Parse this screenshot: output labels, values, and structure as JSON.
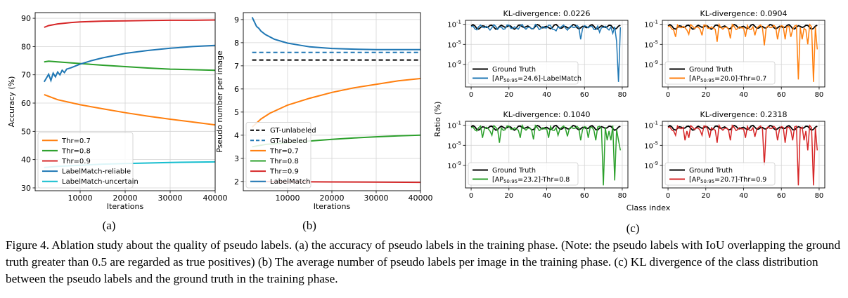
{
  "colors": {
    "orange": "#ff7f0e",
    "green": "#2ca02c",
    "red": "#d62728",
    "blue": "#1f77b4",
    "cyan": "#17becf",
    "black": "#000000"
  },
  "caption": "Figure 4. Ablation study about the quality of pseudo labels. (a) the accuracy of pseudo labels in the training phase. (Note: the pseudo labels with IoU overlapping the ground truth greater than 0.5 are regarded as true positives) (b) The average number of pseudo labels per image in the training phase. (c) KL divergence of the class distribution between the pseudo labels and the ground truth in the training phase.",
  "chart_data": [
    {
      "id": "a",
      "type": "line",
      "sublabel": "(a)",
      "xlabel": "Iterations",
      "ylabel": "Accuracy (%)",
      "xlim": [
        0,
        40000
      ],
      "ylim": [
        29,
        92
      ],
      "xticks": [
        10000,
        20000,
        30000,
        40000
      ],
      "yticks": [
        30,
        40,
        50,
        60,
        70,
        80,
        90
      ],
      "grid": true,
      "legend": "bottom-left",
      "series": [
        {
          "name": "Thr=0.7",
          "color": "orange",
          "x": [
            2000,
            5000,
            10000,
            15000,
            20000,
            25000,
            30000,
            35000,
            40000
          ],
          "y": [
            63,
            61.2,
            59.4,
            58.0,
            56.6,
            55.4,
            54.3,
            53.3,
            52.3
          ]
        },
        {
          "name": "Thr=0.8",
          "color": "green",
          "x": [
            2000,
            3000,
            5000,
            10000,
            15000,
            20000,
            25000,
            30000,
            35000,
            40000
          ],
          "y": [
            74.6,
            74.8,
            74.6,
            74.0,
            73.4,
            72.9,
            72.4,
            72.0,
            71.8,
            71.6
          ]
        },
        {
          "name": "Thr=0.9",
          "color": "red",
          "x": [
            2000,
            3000,
            5000,
            8000,
            10000,
            15000,
            20000,
            25000,
            30000,
            35000,
            40000
          ],
          "y": [
            86.8,
            87.4,
            88.0,
            88.5,
            88.7,
            89.0,
            89.1,
            89.2,
            89.3,
            89.3,
            89.4
          ]
        },
        {
          "name": "LabelMatch-reliable",
          "color": "blue",
          "x": [
            2000,
            3000,
            3500,
            4000,
            4500,
            5000,
            5500,
            6000,
            6500,
            7000,
            8000,
            10000,
            12500,
            15000,
            20000,
            25000,
            30000,
            35000,
            40000
          ],
          "y": [
            67.5,
            70.2,
            68.0,
            70.6,
            69.3,
            71.0,
            70.0,
            71.6,
            70.8,
            72.0,
            72.5,
            73.8,
            75.0,
            76.0,
            77.6,
            78.6,
            79.4,
            80.0,
            80.4
          ]
        },
        {
          "name": "LabelMatch-uncertain",
          "color": "cyan",
          "x": [
            2000,
            5000,
            10000,
            15000,
            20000,
            25000,
            30000,
            35000,
            40000
          ],
          "y": [
            37.2,
            37.6,
            38.0,
            38.4,
            38.6,
            38.8,
            39.0,
            39.1,
            39.2
          ]
        }
      ]
    },
    {
      "id": "b",
      "type": "line",
      "sublabel": "(b)",
      "xlabel": "Iterations",
      "ylabel": "Pseudo number per image",
      "xlim": [
        0,
        40000
      ],
      "ylim": [
        1.6,
        9.3
      ],
      "xticks": [
        10000,
        20000,
        30000,
        40000
      ],
      "yticks": [
        2,
        3,
        4,
        5,
        6,
        7,
        8,
        9
      ],
      "grid": true,
      "legend": "bottom-left",
      "series": [
        {
          "name": "GT-unlabeled",
          "color": "black",
          "dash": true,
          "x": [
            2000,
            40000
          ],
          "y": [
            7.25,
            7.25
          ]
        },
        {
          "name": "GT-labeled",
          "color": "blue",
          "dash": true,
          "x": [
            2000,
            40000
          ],
          "y": [
            7.58,
            7.58
          ]
        },
        {
          "name": "Thr=0.7",
          "color": "orange",
          "x": [
            2000,
            4000,
            6000,
            10000,
            15000,
            20000,
            25000,
            30000,
            35000,
            40000
          ],
          "y": [
            4.35,
            4.7,
            4.95,
            5.3,
            5.6,
            5.85,
            6.05,
            6.2,
            6.35,
            6.45
          ]
        },
        {
          "name": "Thr=0.8",
          "color": "green",
          "x": [
            2000,
            5000,
            10000,
            15000,
            20000,
            25000,
            30000,
            35000,
            40000
          ],
          "y": [
            3.5,
            3.6,
            3.68,
            3.75,
            3.82,
            3.88,
            3.93,
            3.97,
            4.0
          ]
        },
        {
          "name": "Thr=0.9",
          "color": "red",
          "x": [
            2000,
            10000,
            20000,
            30000,
            40000
          ],
          "y": [
            2.0,
            1.99,
            1.98,
            1.97,
            1.96
          ]
        },
        {
          "name": "LabelMatch",
          "color": "blue",
          "x": [
            2000,
            3000,
            3500,
            4000,
            5000,
            7000,
            10000,
            12500,
            15000,
            20000,
            25000,
            30000,
            35000,
            40000
          ],
          "y": [
            9.1,
            8.7,
            8.62,
            8.5,
            8.35,
            8.15,
            7.98,
            7.9,
            7.82,
            7.75,
            7.72,
            7.7,
            7.7,
            7.7
          ]
        }
      ]
    },
    {
      "id": "c1",
      "type": "line",
      "title": "KL-divergence: 0.0226",
      "ylabel": "Ratio (%)",
      "xlim": [
        -3,
        83
      ],
      "yscale": "log",
      "ylim": [
        -13.5,
        -0.2
      ],
      "xticks": [
        0,
        20,
        40,
        60,
        80
      ],
      "yticks": [
        "10^-1",
        "10^-5",
        "10^-9"
      ],
      "grid": true,
      "legend": "bottom-left",
      "series": [
        {
          "name": "Ground Truth",
          "color": "black",
          "spikes": []
        },
        {
          "name": "[AP50:95=24.6]-LabelMatch",
          "color": "blue",
          "spikes": [
            [
              3,
              -2.1
            ],
            [
              14,
              -2.0
            ],
            [
              33,
              -1.8
            ],
            [
              45,
              -2.3
            ],
            [
              58,
              -4.0
            ],
            [
              68,
              -2.6
            ],
            [
              75,
              -2.8
            ],
            [
              77,
              -4.4
            ],
            [
              78,
              -12.5
            ]
          ]
        }
      ]
    },
    {
      "id": "c2",
      "type": "line",
      "title": "KL-divergence: 0.0904",
      "xlim": [
        -3,
        83
      ],
      "yscale": "log",
      "ylim": [
        -13.5,
        -0.2
      ],
      "xticks": [
        0,
        20,
        40,
        60,
        80
      ],
      "yticks": [
        "10^-1",
        "10^-5",
        "10^-9"
      ],
      "grid": true,
      "legend": "bottom-left",
      "series": [
        {
          "name": "Ground Truth",
          "color": "black",
          "spikes": []
        },
        {
          "name": "[AP50:95=20.0]-Thr=0.7",
          "color": "orange",
          "spikes": [
            [
              4,
              -3.5
            ],
            [
              11,
              -3.0
            ],
            [
              18,
              -3.2
            ],
            [
              26,
              -4.5
            ],
            [
              33,
              -3.8
            ],
            [
              41,
              -3.5
            ],
            [
              46,
              -3.2
            ],
            [
              51,
              -5.2
            ],
            [
              58,
              -4.0
            ],
            [
              62,
              -4.0
            ],
            [
              65,
              -3.5
            ],
            [
              69,
              -12.0
            ],
            [
              71,
              -4.0
            ],
            [
              74,
              -5.0
            ],
            [
              77,
              -12.5
            ],
            [
              79,
              -6.0
            ]
          ]
        }
      ]
    },
    {
      "id": "c3",
      "type": "line",
      "title": "KL-divergence: 0.1040",
      "ylabel": "Ratio (%)",
      "xlabel": "Class index",
      "xlim": [
        -3,
        83
      ],
      "yscale": "log",
      "ylim": [
        -13.5,
        -0.2
      ],
      "xticks": [
        0,
        20,
        40,
        60,
        80
      ],
      "yticks": [
        "10^-1",
        "10^-5",
        "10^-9"
      ],
      "grid": true,
      "legend": "bottom-left",
      "series": [
        {
          "name": "Ground Truth",
          "color": "black",
          "spikes": []
        },
        {
          "name": "[AP50:95=23.2]-Thr=0.8",
          "color": "green",
          "spikes": [
            [
              6,
              -3.5
            ],
            [
              11,
              -3.0
            ],
            [
              15,
              -4.5
            ],
            [
              26,
              -3.5
            ],
            [
              33,
              -3.8
            ],
            [
              41,
              -3.5
            ],
            [
              46,
              -3.0
            ],
            [
              51,
              -3.2
            ],
            [
              58,
              -4.0
            ],
            [
              62,
              -3.5
            ],
            [
              66,
              -4.0
            ],
            [
              70,
              -13.0
            ],
            [
              72,
              -4.0
            ],
            [
              74,
              -4.0
            ],
            [
              76,
              -12.0
            ],
            [
              78,
              -4.0
            ],
            [
              79,
              -6.0
            ]
          ]
        }
      ]
    },
    {
      "id": "c4",
      "type": "line",
      "title": "KL-divergence: 0.2318",
      "xlim": [
        -3,
        83
      ],
      "yscale": "log",
      "ylim": [
        -13.5,
        -0.2
      ],
      "xticks": [
        0,
        20,
        40,
        60,
        80
      ],
      "yticks": [
        "10^-1",
        "10^-5",
        "10^-9"
      ],
      "grid": true,
      "legend": "bottom-left",
      "series": [
        {
          "name": "Ground Truth",
          "color": "black",
          "spikes": []
        },
        {
          "name": "[AP50:95=20.7]-Thr=0.9",
          "color": "red",
          "spikes": [
            [
              4,
              -3.0
            ],
            [
              9,
              -4.0
            ],
            [
              11,
              -3.5
            ],
            [
              18,
              -3.0
            ],
            [
              22,
              -3.5
            ],
            [
              26,
              -4.5
            ],
            [
              33,
              -4.0
            ],
            [
              41,
              -3.5
            ],
            [
              46,
              -3.3
            ],
            [
              51,
              -9.0
            ],
            [
              58,
              -4.0
            ],
            [
              62,
              -4.5
            ],
            [
              66,
              -4.0
            ],
            [
              69,
              -13.0
            ],
            [
              72,
              -4.0
            ],
            [
              74,
              -6.0
            ],
            [
              77,
              -13.0
            ],
            [
              79,
              -6.0
            ]
          ]
        }
      ]
    }
  ]
}
